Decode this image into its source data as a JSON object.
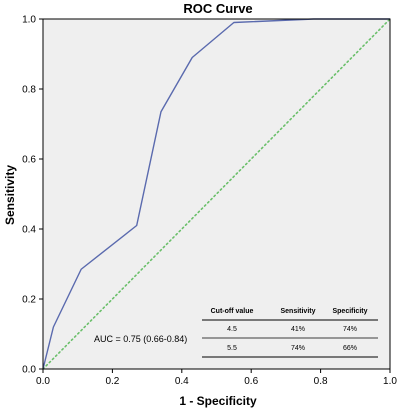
{
  "chart_data": {
    "type": "line",
    "title": "ROC Curve",
    "xlabel": "1 - Specificity",
    "ylabel": "Sensitivity",
    "xlim": [
      0,
      1
    ],
    "ylim": [
      0,
      1
    ],
    "xticks": [
      "0.0",
      "0.2",
      "0.4",
      "0.6",
      "0.8",
      "1.0"
    ],
    "yticks": [
      "0.0",
      "0.2",
      "0.4",
      "0.6",
      "0.8",
      "1.0"
    ],
    "grid": false,
    "series": [
      {
        "points": [
          [
            0,
            0
          ],
          [
            0.03,
            0.12
          ],
          [
            0.11,
            0.285
          ],
          [
            0.27,
            0.41
          ],
          [
            0.34,
            0.735
          ],
          [
            0.43,
            0.89
          ],
          [
            0.55,
            0.99
          ],
          [
            0.78,
            1.0
          ],
          [
            1.0,
            1.0
          ]
        ],
        "color": "#5a6aae"
      },
      {
        "points": [
          [
            0,
            0
          ],
          [
            1,
            1
          ]
        ],
        "color": "#6abf6a",
        "style": "dotted"
      }
    ],
    "annotations": {
      "auc": "AUC = 0.75 (0.66-0.84)",
      "table": {
        "headers": [
          "Cut-off value",
          "Sensitivity",
          "Specificity"
        ],
        "rows": [
          [
            "4.5",
            "41%",
            "74%"
          ],
          [
            "5.5",
            "74%",
            "66%"
          ]
        ]
      }
    },
    "colors": {
      "plot_background": "#efefef",
      "axis": "#000000"
    }
  }
}
